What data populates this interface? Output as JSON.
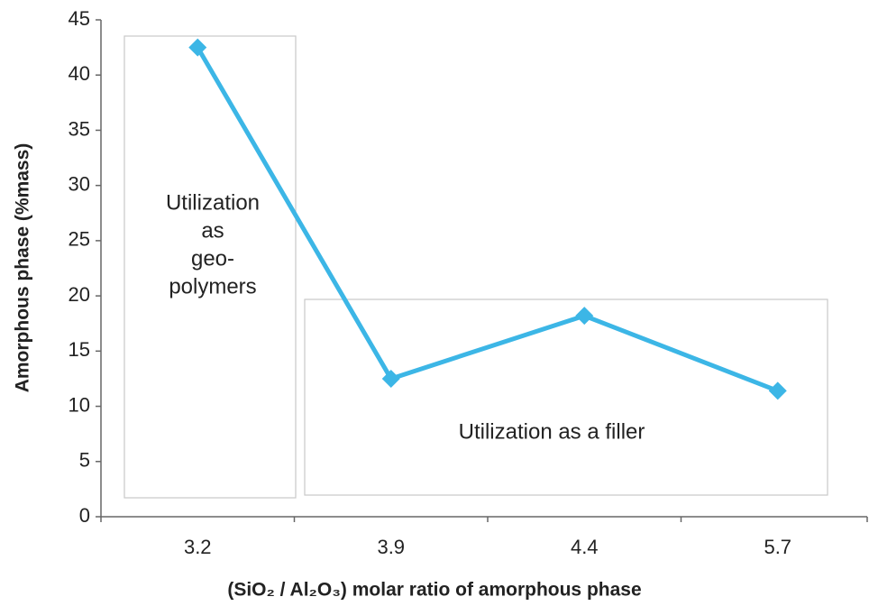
{
  "chart_data": {
    "type": "line",
    "x_label": "(SiO₂ / Al₂O₃) molar ratio of amorphous phase",
    "y_label": "Amorphous phase (%mass)",
    "categories": [
      "3.2",
      "3.9",
      "4.4",
      "5.7"
    ],
    "series": [
      {
        "color": "#3cb6e6",
        "values": [
          42.5,
          12.5,
          18.2,
          11.4
        ]
      }
    ],
    "ylim": [
      0,
      45
    ],
    "yticks": [
      0,
      5,
      10,
      15,
      20,
      25,
      30,
      35,
      40,
      45
    ],
    "annotations": [
      {
        "lines": [
          "Utilization",
          "as",
          "geo-",
          "polymers"
        ]
      },
      {
        "lines": [
          "Utilization as a filler"
        ]
      }
    ]
  }
}
